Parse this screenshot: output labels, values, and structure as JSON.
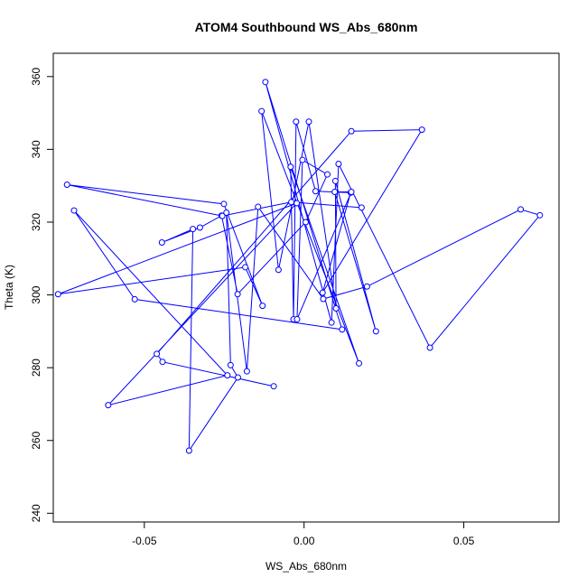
{
  "chart_data": {
    "type": "line",
    "title": "ATOM4 Southbound WS_Abs_680nm",
    "xlabel": "WS_Abs_680nm",
    "ylabel": "Theta (K)",
    "xlim": [
      -0.0785,
      0.0798
    ],
    "ylim": [
      237.6,
      366.4
    ],
    "x_ticks": [
      -0.05,
      0.0,
      0.05
    ],
    "x_tick_labels": [
      "-0.05",
      "0.00",
      "0.05"
    ],
    "y_ticks": [
      240,
      260,
      280,
      300,
      320,
      340,
      360
    ],
    "y_tick_labels": [
      "240",
      "260",
      "280",
      "300",
      "320",
      "340",
      "360"
    ],
    "grid": false,
    "legend": "none",
    "markers": "open-circle",
    "series": [
      {
        "color": "#0000ff",
        "points": [
          {
            "x": -0.0095,
            "y": 274.9
          },
          {
            "x": -0.0443,
            "y": 281.6
          },
          {
            "x": -0.0461,
            "y": 283.8
          },
          {
            "x": 0.0148,
            "y": 345.0
          },
          {
            "x": 0.0369,
            "y": 345.4
          },
          {
            "x": 0.0058,
            "y": 300.6
          },
          {
            "x": 0.0146,
            "y": 328.1
          },
          {
            "x": 0.0036,
            "y": 328.5
          },
          {
            "x": -0.0025,
            "y": 347.6
          },
          {
            "x": -0.0033,
            "y": 293.3
          },
          {
            "x": -0.0042,
            "y": 335.2
          },
          {
            "x": 0.0172,
            "y": 281.2
          },
          {
            "x": -0.0133,
            "y": 350.5
          },
          {
            "x": -0.008,
            "y": 306.9
          },
          {
            "x": 0.0015,
            "y": 347.6
          },
          {
            "x": 0.01,
            "y": 296.3
          },
          {
            "x": 0.0098,
            "y": 331.3
          },
          {
            "x": 0.0225,
            "y": 290.0
          },
          {
            "x": 0.0096,
            "y": 328.3
          },
          {
            "x": 0.0148,
            "y": 328.3
          },
          {
            "x": -0.0022,
            "y": 293.3
          },
          {
            "x": -0.0005,
            "y": 337.1
          },
          {
            "x": 0.0073,
            "y": 333.1
          },
          {
            "x": 0.0005,
            "y": 320.0
          },
          {
            "x": -0.0208,
            "y": 300.2
          },
          {
            "x": -0.0258,
            "y": 321.8
          },
          {
            "x": -0.0326,
            "y": 318.5
          },
          {
            "x": -0.0445,
            "y": 314.4
          },
          {
            "x": -0.0348,
            "y": 318.1
          },
          {
            "x": -0.036,
            "y": 257.2
          },
          {
            "x": -0.0207,
            "y": 277.3
          },
          {
            "x": -0.023,
            "y": 280.7
          },
          {
            "x": -0.0243,
            "y": 322.6
          },
          {
            "x": -0.0179,
            "y": 279.0
          },
          {
            "x": -0.0144,
            "y": 324.2
          },
          {
            "x": 0.006,
            "y": 298.9
          },
          {
            "x": 0.0197,
            "y": 302.3
          },
          {
            "x": 0.0678,
            "y": 323.5
          },
          {
            "x": 0.0738,
            "y": 321.9
          },
          {
            "x": 0.0394,
            "y": 285.5
          },
          {
            "x": 0.0108,
            "y": 336.0
          },
          {
            "x": 0.0086,
            "y": 292.4
          },
          {
            "x": -0.0121,
            "y": 358.5
          },
          {
            "x": 0.0119,
            "y": 290.5
          },
          {
            "x": -0.053,
            "y": 298.8
          },
          {
            "x": -0.072,
            "y": 323.2
          },
          {
            "x": -0.024,
            "y": 277.9
          },
          {
            "x": -0.0613,
            "y": 269.7
          },
          {
            "x": -0.0023,
            "y": 325.2
          },
          {
            "x": -0.077,
            "y": 300.2
          },
          {
            "x": -0.0184,
            "y": 307.6
          },
          {
            "x": -0.013,
            "y": 297.0
          },
          {
            "x": -0.0251,
            "y": 325.0
          },
          {
            "x": -0.0742,
            "y": 330.3
          },
          {
            "x": -0.0256,
            "y": 321.7
          },
          {
            "x": -0.004,
            "y": 325.5
          },
          {
            "x": 0.018,
            "y": 324.0
          }
        ]
      }
    ]
  }
}
